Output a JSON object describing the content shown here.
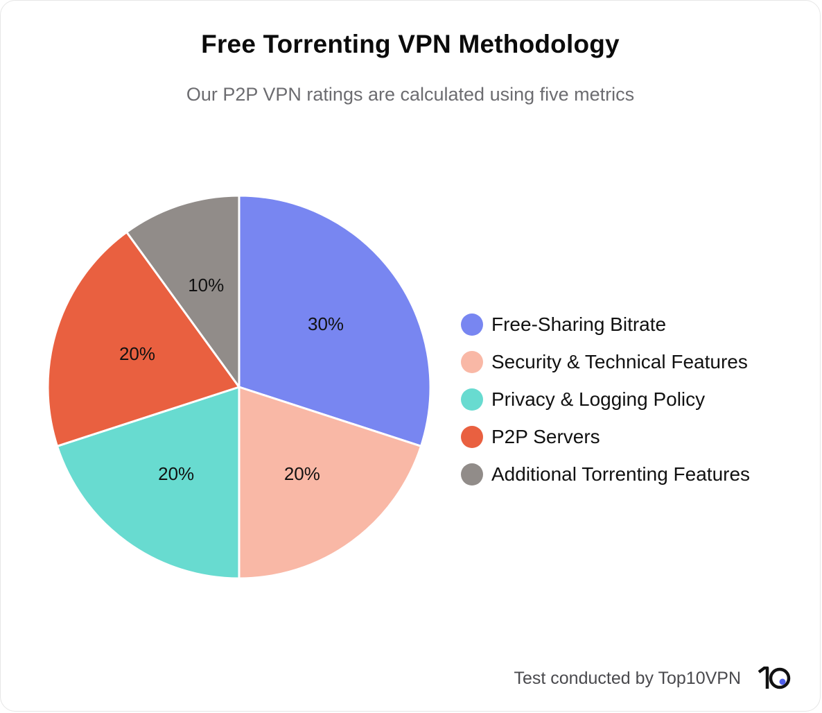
{
  "header": {
    "title": "Free Torrenting VPN Methodology",
    "subtitle": "Our P2P VPN ratings are calculated using five metrics"
  },
  "footer": {
    "text": "Test conducted by Top10VPN",
    "logo_text": "10",
    "logo_icon": "top10vpn-logo"
  },
  "chart_data": {
    "type": "pie",
    "title": "Free Torrenting VPN Methodology",
    "subtitle": "Our P2P VPN ratings are calculated using five metrics",
    "legend_position": "right",
    "slices": [
      {
        "label": "Free-Sharing Bitrate",
        "value": 30,
        "display": "30%",
        "color": "#7886f1"
      },
      {
        "label": "Security & Technical Features",
        "value": 20,
        "display": "20%",
        "color": "#f9b8a6"
      },
      {
        "label": "Privacy & Logging Policy",
        "value": 20,
        "display": "20%",
        "color": "#68dbd0"
      },
      {
        "label": "P2P Servers",
        "value": 20,
        "display": "20%",
        "color": "#e96040"
      },
      {
        "label": "Additional Torrenting Features",
        "value": 10,
        "display": "10%",
        "color": "#918c89"
      }
    ]
  }
}
